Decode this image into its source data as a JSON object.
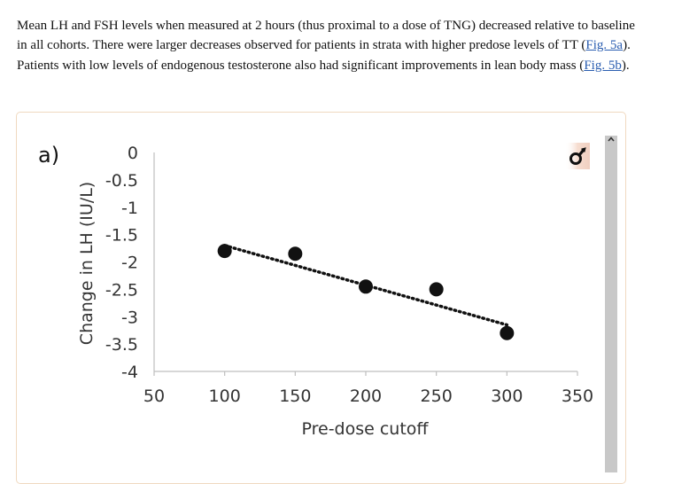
{
  "article": {
    "part1": "Mean LH and FSH levels when measured at 2 hours (thus proximal to a dose of TNG) decreased relative to baseline in all cohorts. There were larger decreases observed for patients in strata with higher predose levels of TT (",
    "link1": "Fig. 5a",
    "part2": "). Patients with low levels of endogenous testosterone also had significant improvements in lean body mass (",
    "link2": "Fig. 5b",
    "part3": ")."
  },
  "figure": {
    "tool_icon": "wrench-icon",
    "scroll_up_icon": "chevron-up-icon"
  },
  "colors": {
    "link": "#2a5db0",
    "figure_border": "#f0d9c0",
    "scrollbar": "#c8c8c8",
    "tool_bg": "#f6ddd0",
    "marker": "#111111"
  },
  "chart_data": {
    "type": "scatter",
    "panel_label": "a)",
    "title": "",
    "xlabel": "Pre-dose cutoff",
    "ylabel": "Change in LH (IU/L)",
    "x_ticks": [
      50,
      100,
      150,
      200,
      250,
      300,
      350
    ],
    "x_tick_labels": [
      "50",
      "100",
      "150",
      "200",
      "250",
      "300",
      "350"
    ],
    "y_ticks": [
      0,
      -0.5,
      -1,
      -1.5,
      -2,
      -2.5,
      -3,
      -3.5,
      -4
    ],
    "y_tick_labels": [
      "0",
      "-0.5",
      "-1",
      "-1.5",
      "-2",
      "-2.5",
      "-3",
      "-3.5",
      "-4"
    ],
    "xlim": [
      50,
      350
    ],
    "ylim": [
      -4,
      0
    ],
    "grid": false,
    "series": [
      {
        "name": "LH",
        "x": [
          100,
          150,
          200,
          250,
          300
        ],
        "y": [
          -1.8,
          -1.85,
          -2.45,
          -2.5,
          -3.3
        ]
      }
    ],
    "trendline": {
      "style": "dotted",
      "x": [
        100,
        300
      ],
      "y": [
        -1.7,
        -3.15
      ]
    }
  }
}
